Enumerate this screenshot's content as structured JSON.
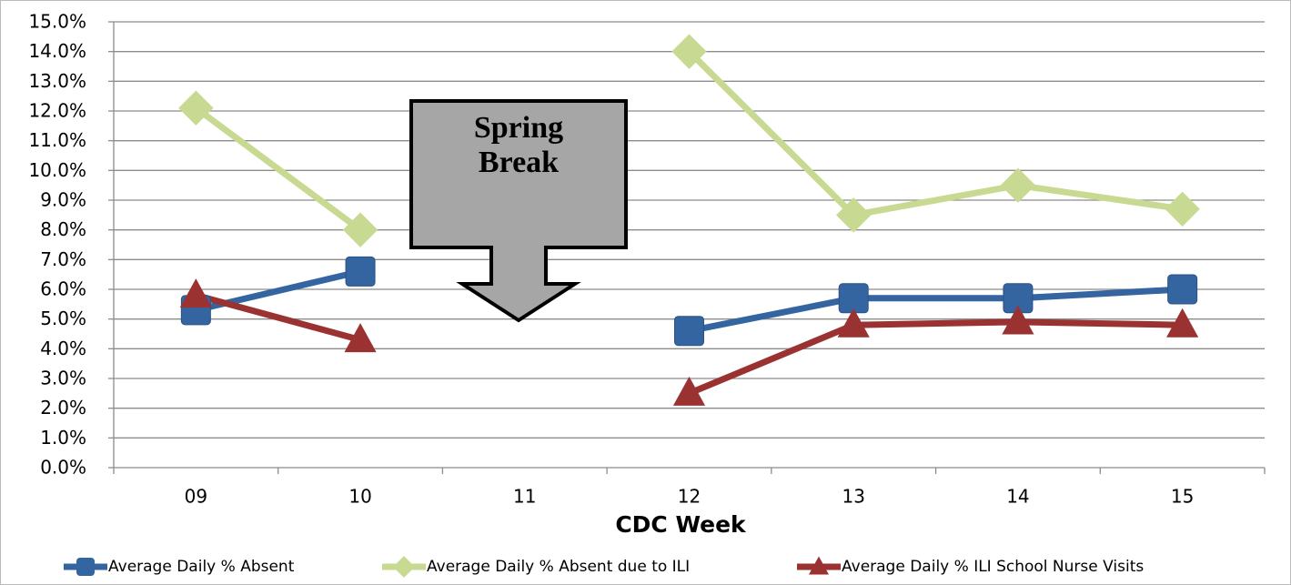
{
  "chart_data": {
    "type": "line",
    "x_label": "CDC Week",
    "annotation": [
      "Spring",
      "Break"
    ],
    "categories": [
      "09",
      "10",
      "11",
      "12",
      "13",
      "14",
      "15"
    ],
    "series": [
      {
        "name": "Average Daily % Absent",
        "color": "#3565a0",
        "marker": "square",
        "values": [
          5.3,
          6.6,
          null,
          4.6,
          5.7,
          5.7,
          6.0
        ]
      },
      {
        "name": "Average Daily % Absent due to ILI",
        "color": "#c8da92",
        "marker": "diamond",
        "values": [
          12.1,
          8.0,
          null,
          14.0,
          8.5,
          9.5,
          8.7
        ]
      },
      {
        "name": "Average Daily % ILI School Nurse Visits",
        "color": "#9a3232",
        "marker": "triangle",
        "values": [
          5.8,
          4.3,
          null,
          2.5,
          4.8,
          4.9,
          4.8
        ]
      }
    ],
    "ylim": [
      0,
      15
    ],
    "yticks": [
      {
        "value": 0,
        "label": "0.0%"
      },
      {
        "value": 1,
        "label": "1.0%"
      },
      {
        "value": 2,
        "label": "2.0%"
      },
      {
        "value": 3,
        "label": "3.0%"
      },
      {
        "value": 4,
        "label": "4.0%"
      },
      {
        "value": 5,
        "label": "5.0%"
      },
      {
        "value": 6,
        "label": "6.0%"
      },
      {
        "value": 7,
        "label": "7.0%"
      },
      {
        "value": 8,
        "label": "8.0%"
      },
      {
        "value": 9,
        "label": "9.0%"
      },
      {
        "value": 10,
        "label": "10.0%"
      },
      {
        "value": 11,
        "label": "11.0%"
      },
      {
        "value": 12,
        "label": "12.0%"
      },
      {
        "value": 13,
        "label": "13.0%"
      },
      {
        "value": 14,
        "label": "14.0%"
      },
      {
        "value": 15,
        "label": "15.0%"
      }
    ],
    "grid": true
  }
}
